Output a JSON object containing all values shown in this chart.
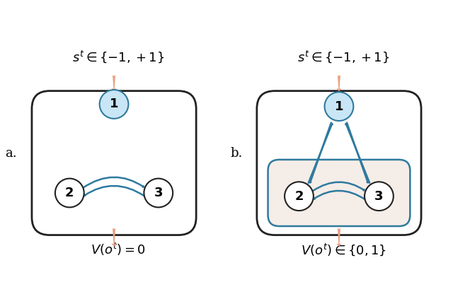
{
  "arrow_color": "#E8A080",
  "node_color": "#C8E6F5",
  "node_edge_color": "#2E7A9E",
  "arc_color": "#2E7A9E",
  "box_edge_color": "#222222",
  "inner_box_color": "#F5EDE8",
  "inner_box_edge_color": "#2E7A9E",
  "label_a": "a.",
  "label_b": "b.",
  "title_a": "$s^t \\in \\{-1, +1\\}$",
  "title_b": "$s^t \\in \\{-1, +1\\}$",
  "bottom_a": "$V(o^t) = 0$",
  "bottom_b": "$V(o^t) \\in \\{0, 1\\}$"
}
